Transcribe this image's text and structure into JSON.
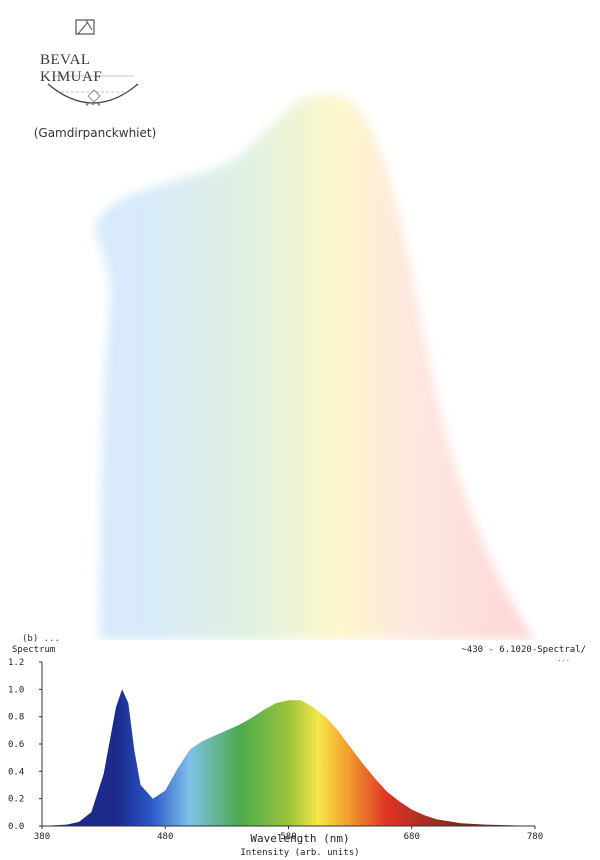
{
  "brand": {
    "logo_text": "BEVAL KIMUAF",
    "subtitle": "(Gamdirpanckwhiet)"
  },
  "panel_label": "(b) ...",
  "header": {
    "left": "Spectrum",
    "right": "~430 - 6.1020-Spectral/",
    "right_sub": "..."
  },
  "colors": {
    "hero_stops": [
      "#d6e9fb",
      "#dff0e0",
      "#fdf7c9",
      "#fde6de",
      "#fcd6d6"
    ],
    "spectrum_stops": [
      "#1c2a8a",
      "#2a56c8",
      "#7fc1e8",
      "#4caa4f",
      "#9ac43c",
      "#f5e64a",
      "#f29f2f",
      "#de3324",
      "#7a2a20"
    ]
  },
  "chart_data": {
    "type": "area",
    "xlabel": "Wavelength (nm)",
    "x_sublabel": "Intensity (arb. units)",
    "ylabel": "",
    "xlim": [
      380,
      780
    ],
    "ylim": [
      0,
      1.2
    ],
    "x_ticks": [
      {
        "value": 380,
        "label": "380"
      },
      {
        "value": 480,
        "label": "480"
      },
      {
        "value": 580,
        "label": "580"
      },
      {
        "value": 680,
        "label": "680"
      },
      {
        "value": 780,
        "label": "780"
      }
    ],
    "y_ticks": [
      {
        "value": 1.2,
        "label": "1.2"
      },
      {
        "value": 1.0,
        "label": "1.0"
      },
      {
        "value": 0.8,
        "label": "0.8"
      },
      {
        "value": 0.6,
        "label": "0.6"
      },
      {
        "value": 0.4,
        "label": "0.4"
      },
      {
        "value": 0.2,
        "label": "0.2"
      },
      {
        "value": 0.0,
        "label": "0.0"
      }
    ],
    "series": [
      {
        "x": [
          380,
          400,
          410,
          420,
          430,
          440,
          445,
          450,
          455,
          460,
          470,
          480,
          490,
          500,
          510,
          520,
          530,
          540,
          550,
          560,
          570,
          580,
          590,
          600,
          610,
          620,
          630,
          640,
          650,
          660,
          670,
          680,
          690,
          700,
          720,
          740,
          760,
          780
        ],
        "y": [
          0.0,
          0.01,
          0.03,
          0.1,
          0.38,
          0.87,
          1.0,
          0.9,
          0.55,
          0.3,
          0.2,
          0.26,
          0.42,
          0.56,
          0.62,
          0.66,
          0.7,
          0.74,
          0.79,
          0.85,
          0.9,
          0.92,
          0.92,
          0.87,
          0.8,
          0.7,
          0.58,
          0.46,
          0.35,
          0.25,
          0.18,
          0.12,
          0.08,
          0.05,
          0.02,
          0.01,
          0.005,
          0.0
        ]
      }
    ],
    "grid": false,
    "legend": "none"
  }
}
